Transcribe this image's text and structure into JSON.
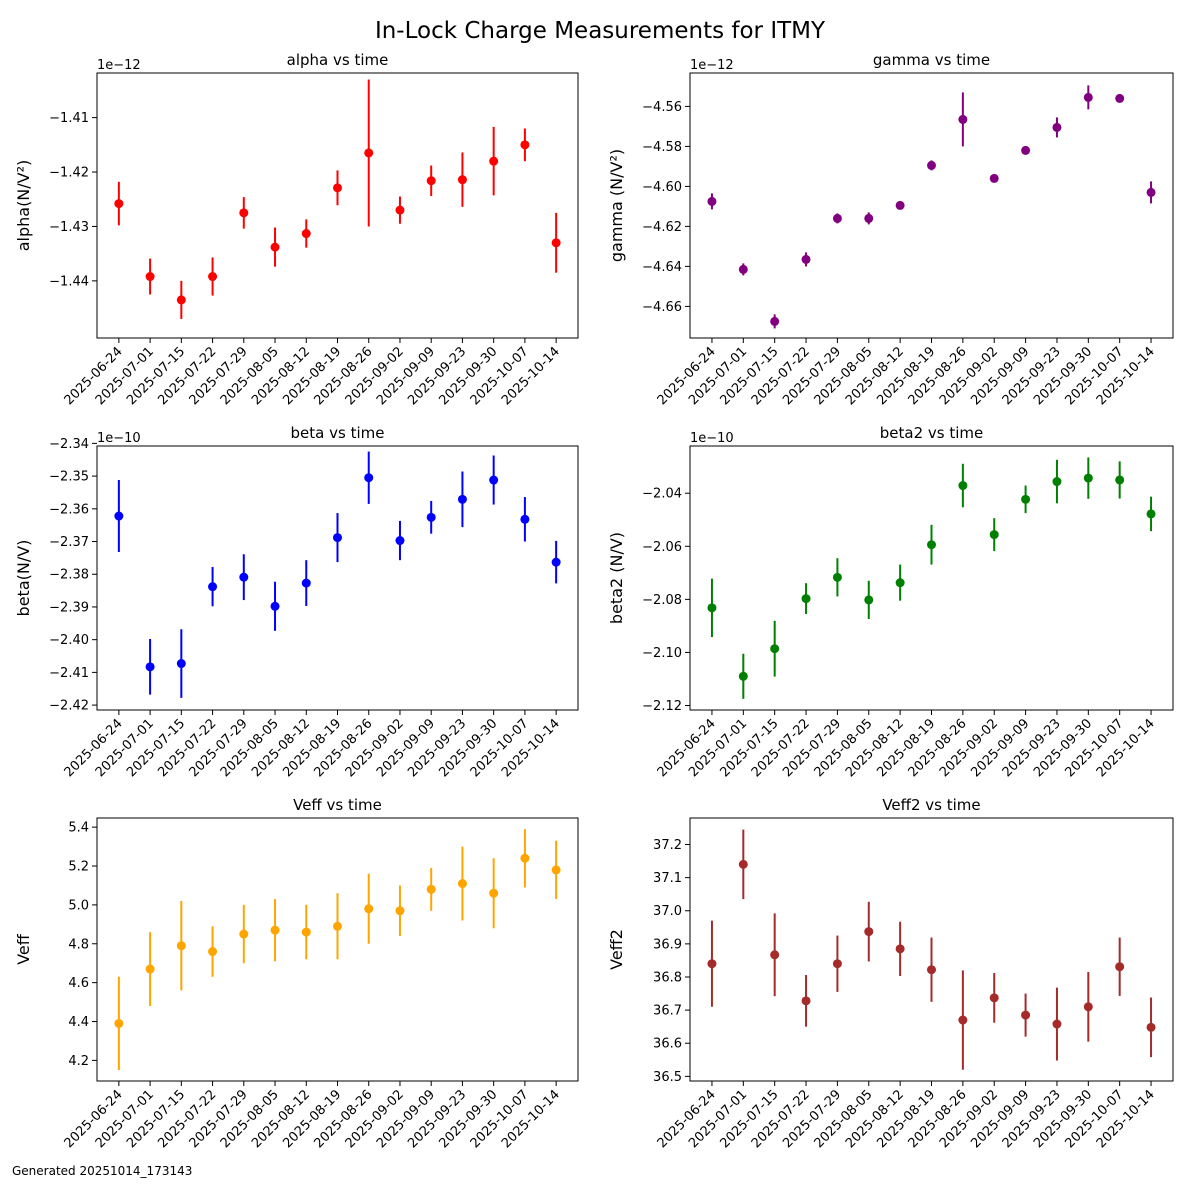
{
  "figure": {
    "title": "In-Lock Charge Measurements for ITMY",
    "footer": "Generated 20251014_173143"
  },
  "chart_data": [
    {
      "type": "scatter",
      "title": "alpha vs time",
      "ylabel": "alpha(N/V²)",
      "offset_label": "1e−12",
      "scale": 1e-12,
      "color": "#ff0000",
      "ylim": [
        -1.4505,
        -1.4018
      ],
      "yticks": [
        -1.44,
        -1.43,
        -1.42,
        -1.41
      ],
      "x": [
        "2025-06-24",
        "2025-07-01",
        "2025-07-15",
        "2025-07-22",
        "2025-07-29",
        "2025-08-05",
        "2025-08-12",
        "2025-08-19",
        "2025-08-26",
        "2025-09-02",
        "2025-09-09",
        "2025-09-23",
        "2025-09-30",
        "2025-10-07",
        "2025-10-14"
      ],
      "y": [
        -1.4258,
        -1.4392,
        -1.4435,
        -1.4392,
        -1.4275,
        -1.4338,
        -1.4313,
        -1.4229,
        -1.4165,
        -1.427,
        -1.4216,
        -1.4214,
        -1.418,
        -1.415,
        -1.433
      ],
      "err": [
        0.004,
        0.0033,
        0.0035,
        0.0035,
        0.0029,
        0.0036,
        0.0026,
        0.0032,
        0.0135,
        0.0025,
        0.0028,
        0.005,
        0.0063,
        0.003,
        0.0055
      ]
    },
    {
      "type": "scatter",
      "title": "gamma vs time",
      "ylabel": "gamma (N/V²)",
      "offset_label": "1e−12",
      "scale": 1e-12,
      "color": "#800080",
      "ylim": [
        -4.6758,
        -4.5433
      ],
      "yticks": [
        -4.66,
        -4.64,
        -4.62,
        -4.6,
        -4.58,
        -4.56
      ],
      "x": [
        "2025-06-24",
        "2025-07-01",
        "2025-07-15",
        "2025-07-22",
        "2025-07-29",
        "2025-08-05",
        "2025-08-12",
        "2025-08-19",
        "2025-08-26",
        "2025-09-02",
        "2025-09-09",
        "2025-09-23",
        "2025-09-30",
        "2025-10-07",
        "2025-10-14"
      ],
      "y": [
        -4.6075,
        -4.6415,
        -4.6675,
        -4.6365,
        -4.616,
        -4.616,
        -4.6095,
        -4.5895,
        -4.5665,
        -4.596,
        -4.582,
        -4.5705,
        -4.5555,
        -4.556,
        -4.603
      ],
      "err": [
        0.004,
        0.003,
        0.0035,
        0.0035,
        0.0025,
        0.003,
        0.002,
        0.0025,
        0.0135,
        0.002,
        0.0015,
        0.005,
        0.006,
        0.0015,
        0.0055
      ]
    },
    {
      "type": "scatter",
      "title": "beta vs time",
      "ylabel": "beta(N/V)",
      "offset_label": "1e−10",
      "scale": 1e-10,
      "color": "#0000ff",
      "ylim": [
        -2.4215,
        -2.3408
      ],
      "yticks": [
        -2.42,
        -2.41,
        -2.4,
        -2.39,
        -2.38,
        -2.37,
        -2.36,
        -2.35,
        -2.34
      ],
      "x": [
        "2025-06-24",
        "2025-07-01",
        "2025-07-15",
        "2025-07-22",
        "2025-07-29",
        "2025-08-05",
        "2025-08-12",
        "2025-08-19",
        "2025-08-26",
        "2025-09-02",
        "2025-09-09",
        "2025-09-23",
        "2025-09-30",
        "2025-10-07",
        "2025-10-14"
      ],
      "y": [
        -2.3622,
        -2.4083,
        -2.4073,
        -2.3838,
        -2.3809,
        -2.3898,
        -2.3827,
        -2.3688,
        -2.3505,
        -2.3697,
        -2.3626,
        -2.3571,
        -2.3512,
        -2.3632,
        -2.3763
      ],
      "err": [
        0.011,
        0.0085,
        0.0105,
        0.006,
        0.007,
        0.0075,
        0.007,
        0.0075,
        0.008,
        0.006,
        0.005,
        0.0085,
        0.0075,
        0.0068,
        0.0065
      ]
    },
    {
      "type": "scatter",
      "title": "beta2 vs time",
      "ylabel": "beta2 (N/V)",
      "offset_label": "1e−10",
      "scale": 1e-10,
      "color": "#008000",
      "ylim": [
        -2.1217,
        -2.0222
      ],
      "yticks": [
        -2.12,
        -2.1,
        -2.08,
        -2.06,
        -2.04
      ],
      "x": [
        "2025-06-24",
        "2025-07-01",
        "2025-07-15",
        "2025-07-22",
        "2025-07-29",
        "2025-08-05",
        "2025-08-12",
        "2025-08-19",
        "2025-08-26",
        "2025-09-02",
        "2025-09-09",
        "2025-09-23",
        "2025-09-30",
        "2025-10-07",
        "2025-10-14"
      ],
      "y": [
        -2.0832,
        -2.109,
        -2.0986,
        -2.0797,
        -2.0717,
        -2.0802,
        -2.0737,
        -2.0594,
        -2.0371,
        -2.0556,
        -2.0423,
        -2.0356,
        -2.0343,
        -2.035,
        -2.0478
      ],
      "err": [
        0.011,
        0.0085,
        0.0105,
        0.0058,
        0.0072,
        0.0072,
        0.0068,
        0.0075,
        0.0082,
        0.0062,
        0.0052,
        0.0082,
        0.0078,
        0.007,
        0.0065
      ]
    },
    {
      "type": "scatter",
      "title": "Veff vs time",
      "ylabel": "Veff",
      "offset_label": "",
      "scale": 1,
      "color": "#ffa500",
      "ylim": [
        4.094,
        5.447
      ],
      "yticks": [
        4.2,
        4.4,
        4.6,
        4.8,
        5.0,
        5.2,
        5.4
      ],
      "x": [
        "2025-06-24",
        "2025-07-01",
        "2025-07-15",
        "2025-07-22",
        "2025-07-29",
        "2025-08-05",
        "2025-08-12",
        "2025-08-19",
        "2025-08-26",
        "2025-09-02",
        "2025-09-09",
        "2025-09-23",
        "2025-09-30",
        "2025-10-07",
        "2025-10-14"
      ],
      "y": [
        4.39,
        4.67,
        4.79,
        4.76,
        4.85,
        4.87,
        4.86,
        4.89,
        4.98,
        4.97,
        5.08,
        5.11,
        5.06,
        5.24,
        5.18
      ],
      "err": [
        0.24,
        0.19,
        0.23,
        0.13,
        0.15,
        0.16,
        0.14,
        0.17,
        0.18,
        0.13,
        0.11,
        0.19,
        0.18,
        0.15,
        0.15
      ]
    },
    {
      "type": "scatter",
      "title": "Veff2 vs time",
      "ylabel": "Veff2",
      "offset_label": "",
      "scale": 1,
      "color": "#a52a2a",
      "ylim": [
        36.486,
        37.28
      ],
      "yticks": [
        36.5,
        36.6,
        36.7,
        36.8,
        36.9,
        37.0,
        37.1,
        37.2
      ],
      "x": [
        "2025-06-24",
        "2025-07-01",
        "2025-07-15",
        "2025-07-22",
        "2025-07-29",
        "2025-08-05",
        "2025-08-12",
        "2025-08-19",
        "2025-08-26",
        "2025-09-02",
        "2025-09-09",
        "2025-09-23",
        "2025-09-30",
        "2025-10-07",
        "2025-10-14"
      ],
      "y": [
        36.84,
        37.14,
        36.867,
        36.728,
        36.84,
        36.937,
        36.885,
        36.822,
        36.67,
        36.737,
        36.685,
        36.658,
        36.71,
        36.831,
        36.648
      ],
      "err": [
        0.13,
        0.105,
        0.125,
        0.078,
        0.085,
        0.09,
        0.082,
        0.097,
        0.15,
        0.075,
        0.065,
        0.11,
        0.105,
        0.088,
        0.09
      ]
    }
  ]
}
